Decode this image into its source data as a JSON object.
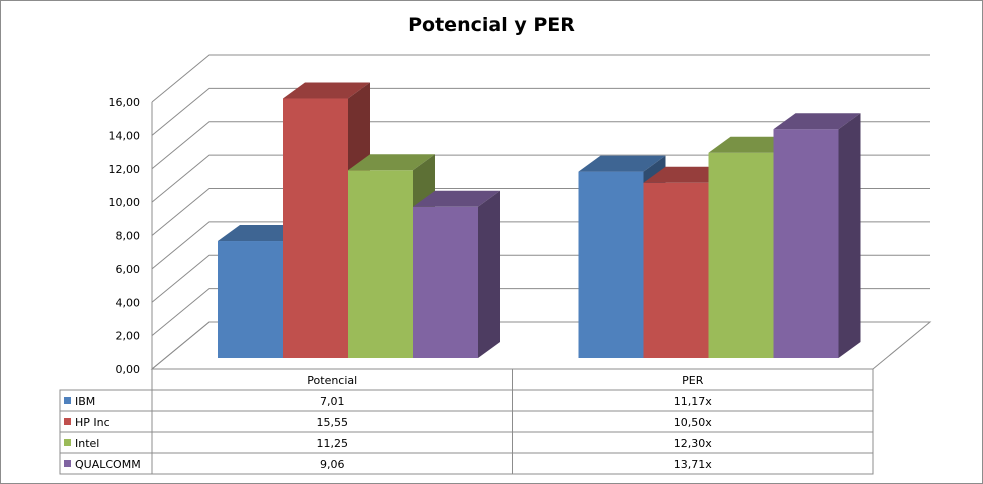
{
  "chart_data": {
    "type": "bar",
    "title": "Potencial y PER",
    "categories": [
      "Potencial",
      "PER"
    ],
    "series": [
      {
        "name": "IBM",
        "values": [
          7.01,
          11.17
        ],
        "labels": [
          "7,01",
          "11,17x"
        ],
        "color": "#4f81bd"
      },
      {
        "name": "HP Inc",
        "values": [
          15.55,
          10.5
        ],
        "labels": [
          "15,55",
          "10,50x"
        ],
        "color": "#c0504d"
      },
      {
        "name": "Intel",
        "values": [
          11.25,
          12.3
        ],
        "labels": [
          "11,25",
          "12,30x"
        ],
        "color": "#9bbb59"
      },
      {
        "name": "QUALCOMM",
        "values": [
          9.06,
          13.71
        ],
        "labels": [
          "9,06",
          "13,71x"
        ],
        "color": "#8064a2"
      }
    ],
    "ylim": [
      0,
      16
    ],
    "yticks": [
      "0,00",
      "2,00",
      "4,00",
      "6,00",
      "8,00",
      "10,00",
      "12,00",
      "14,00",
      "16,00"
    ],
    "grid": true,
    "legend": "data-table",
    "three_d": true
  }
}
